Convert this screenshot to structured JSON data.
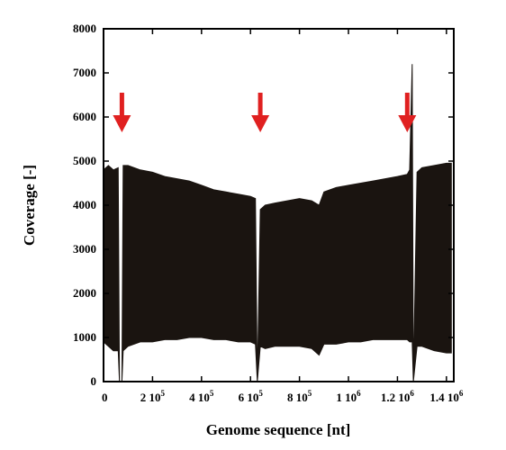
{
  "chart_data": {
    "type": "line",
    "xlabel": "Genome sequence [nt]",
    "ylabel": "Coverage [-]",
    "xlim": [
      0,
      1430000
    ],
    "ylim": [
      0,
      8000
    ],
    "x_ticks": [
      {
        "value": 0,
        "base": "0",
        "exp": ""
      },
      {
        "value": 200000,
        "base": "2 10",
        "exp": "5"
      },
      {
        "value": 400000,
        "base": "4 10",
        "exp": "5"
      },
      {
        "value": 600000,
        "base": "6 10",
        "exp": "5"
      },
      {
        "value": 800000,
        "base": "8 10",
        "exp": "5"
      },
      {
        "value": 1000000,
        "base": "1 10",
        "exp": "6"
      },
      {
        "value": 1200000,
        "base": "1.2 10",
        "exp": "6"
      },
      {
        "value": 1400000,
        "base": "1.4 10",
        "exp": "6"
      }
    ],
    "y_ticks": [
      0,
      1000,
      2000,
      3000,
      4000,
      5000,
      6000,
      7000,
      8000
    ],
    "grid": false,
    "series": [
      {
        "color": "#1a1410",
        "x": [
          0,
          20000,
          40000,
          60000,
          65000,
          75000,
          80000,
          100000,
          150000,
          200000,
          250000,
          300000,
          350000,
          400000,
          450000,
          500000,
          550000,
          600000,
          620000,
          628000,
          640000,
          660000,
          700000,
          750000,
          800000,
          850000,
          880000,
          900000,
          950000,
          1000000,
          1050000,
          1100000,
          1150000,
          1200000,
          1240000,
          1250000,
          1260000,
          1265000,
          1280000,
          1300000,
          1350000,
          1400000,
          1420000
        ],
        "upper": [
          4800,
          4900,
          4800,
          4850,
          0,
          0,
          4900,
          4900,
          4800,
          4750,
          4650,
          4600,
          4550,
          4450,
          4350,
          4300,
          4250,
          4200,
          4150,
          0,
          3900,
          4000,
          4050,
          4100,
          4150,
          4100,
          4000,
          4300,
          4400,
          4450,
          4500,
          4550,
          4600,
          4650,
          4700,
          4800,
          7200,
          0,
          4750,
          4850,
          4900,
          4950,
          4950
        ],
        "lower": [
          900,
          800,
          700,
          700,
          0,
          0,
          700,
          800,
          900,
          900,
          950,
          950,
          1000,
          1000,
          950,
          950,
          900,
          900,
          850,
          0,
          800,
          750,
          800,
          800,
          800,
          750,
          600,
          850,
          850,
          900,
          900,
          950,
          950,
          950,
          950,
          900,
          900,
          0,
          800,
          800,
          700,
          650,
          650
        ]
      }
    ],
    "annotations": [
      {
        "type": "arrow",
        "x": 75000,
        "color": "#e02020"
      },
      {
        "type": "arrow",
        "x": 640000,
        "color": "#e02020"
      },
      {
        "type": "arrow",
        "x": 1240000,
        "color": "#e02020"
      }
    ]
  }
}
